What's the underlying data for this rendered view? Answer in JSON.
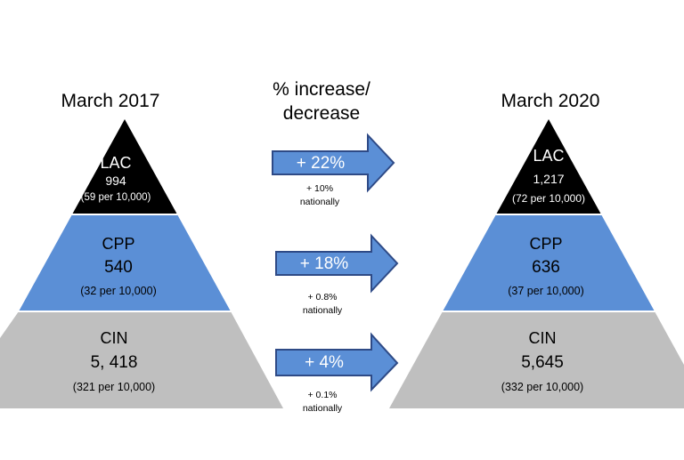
{
  "header": {
    "left_title": "March 2017",
    "middle_title_line1": "% increase/",
    "middle_title_line2": "decrease",
    "right_title": "March 2020"
  },
  "left_pyramid": {
    "lac": {
      "label": "LAC",
      "value": "994",
      "rate": "(59 per 10,000)"
    },
    "cpp": {
      "label": "CPP",
      "value": "540",
      "rate": "(32 per 10,000)"
    },
    "cin": {
      "label": "CIN",
      "value": "5, 418",
      "rate": "(321 per 10,000)"
    }
  },
  "right_pyramid": {
    "lac": {
      "label": "LAC",
      "value": "1,217",
      "rate": "(72 per 10,000)"
    },
    "cpp": {
      "label": "CPP",
      "value": "636",
      "rate": "(37 per 10,000)"
    },
    "cin": {
      "label": "CIN",
      "value": "5,645",
      "rate": "(332 per 10,000)"
    }
  },
  "changes": [
    {
      "label": "+ 22%",
      "note_line1": "+ 10%",
      "note_line2": "nationally"
    },
    {
      "label": "+ 18%",
      "note_line1": "+ 0.8%",
      "note_line2": "nationally"
    },
    {
      "label": "+ 4%",
      "note_line1": "+ 0.1%",
      "note_line2": "nationally"
    }
  ],
  "colors": {
    "lac_fill": "#000000",
    "cpp_fill": "#5b8fd6",
    "cin_fill": "#bfbfbf",
    "arrow_fill": "#5b8fd6",
    "arrow_stroke": "#2e4a86"
  }
}
